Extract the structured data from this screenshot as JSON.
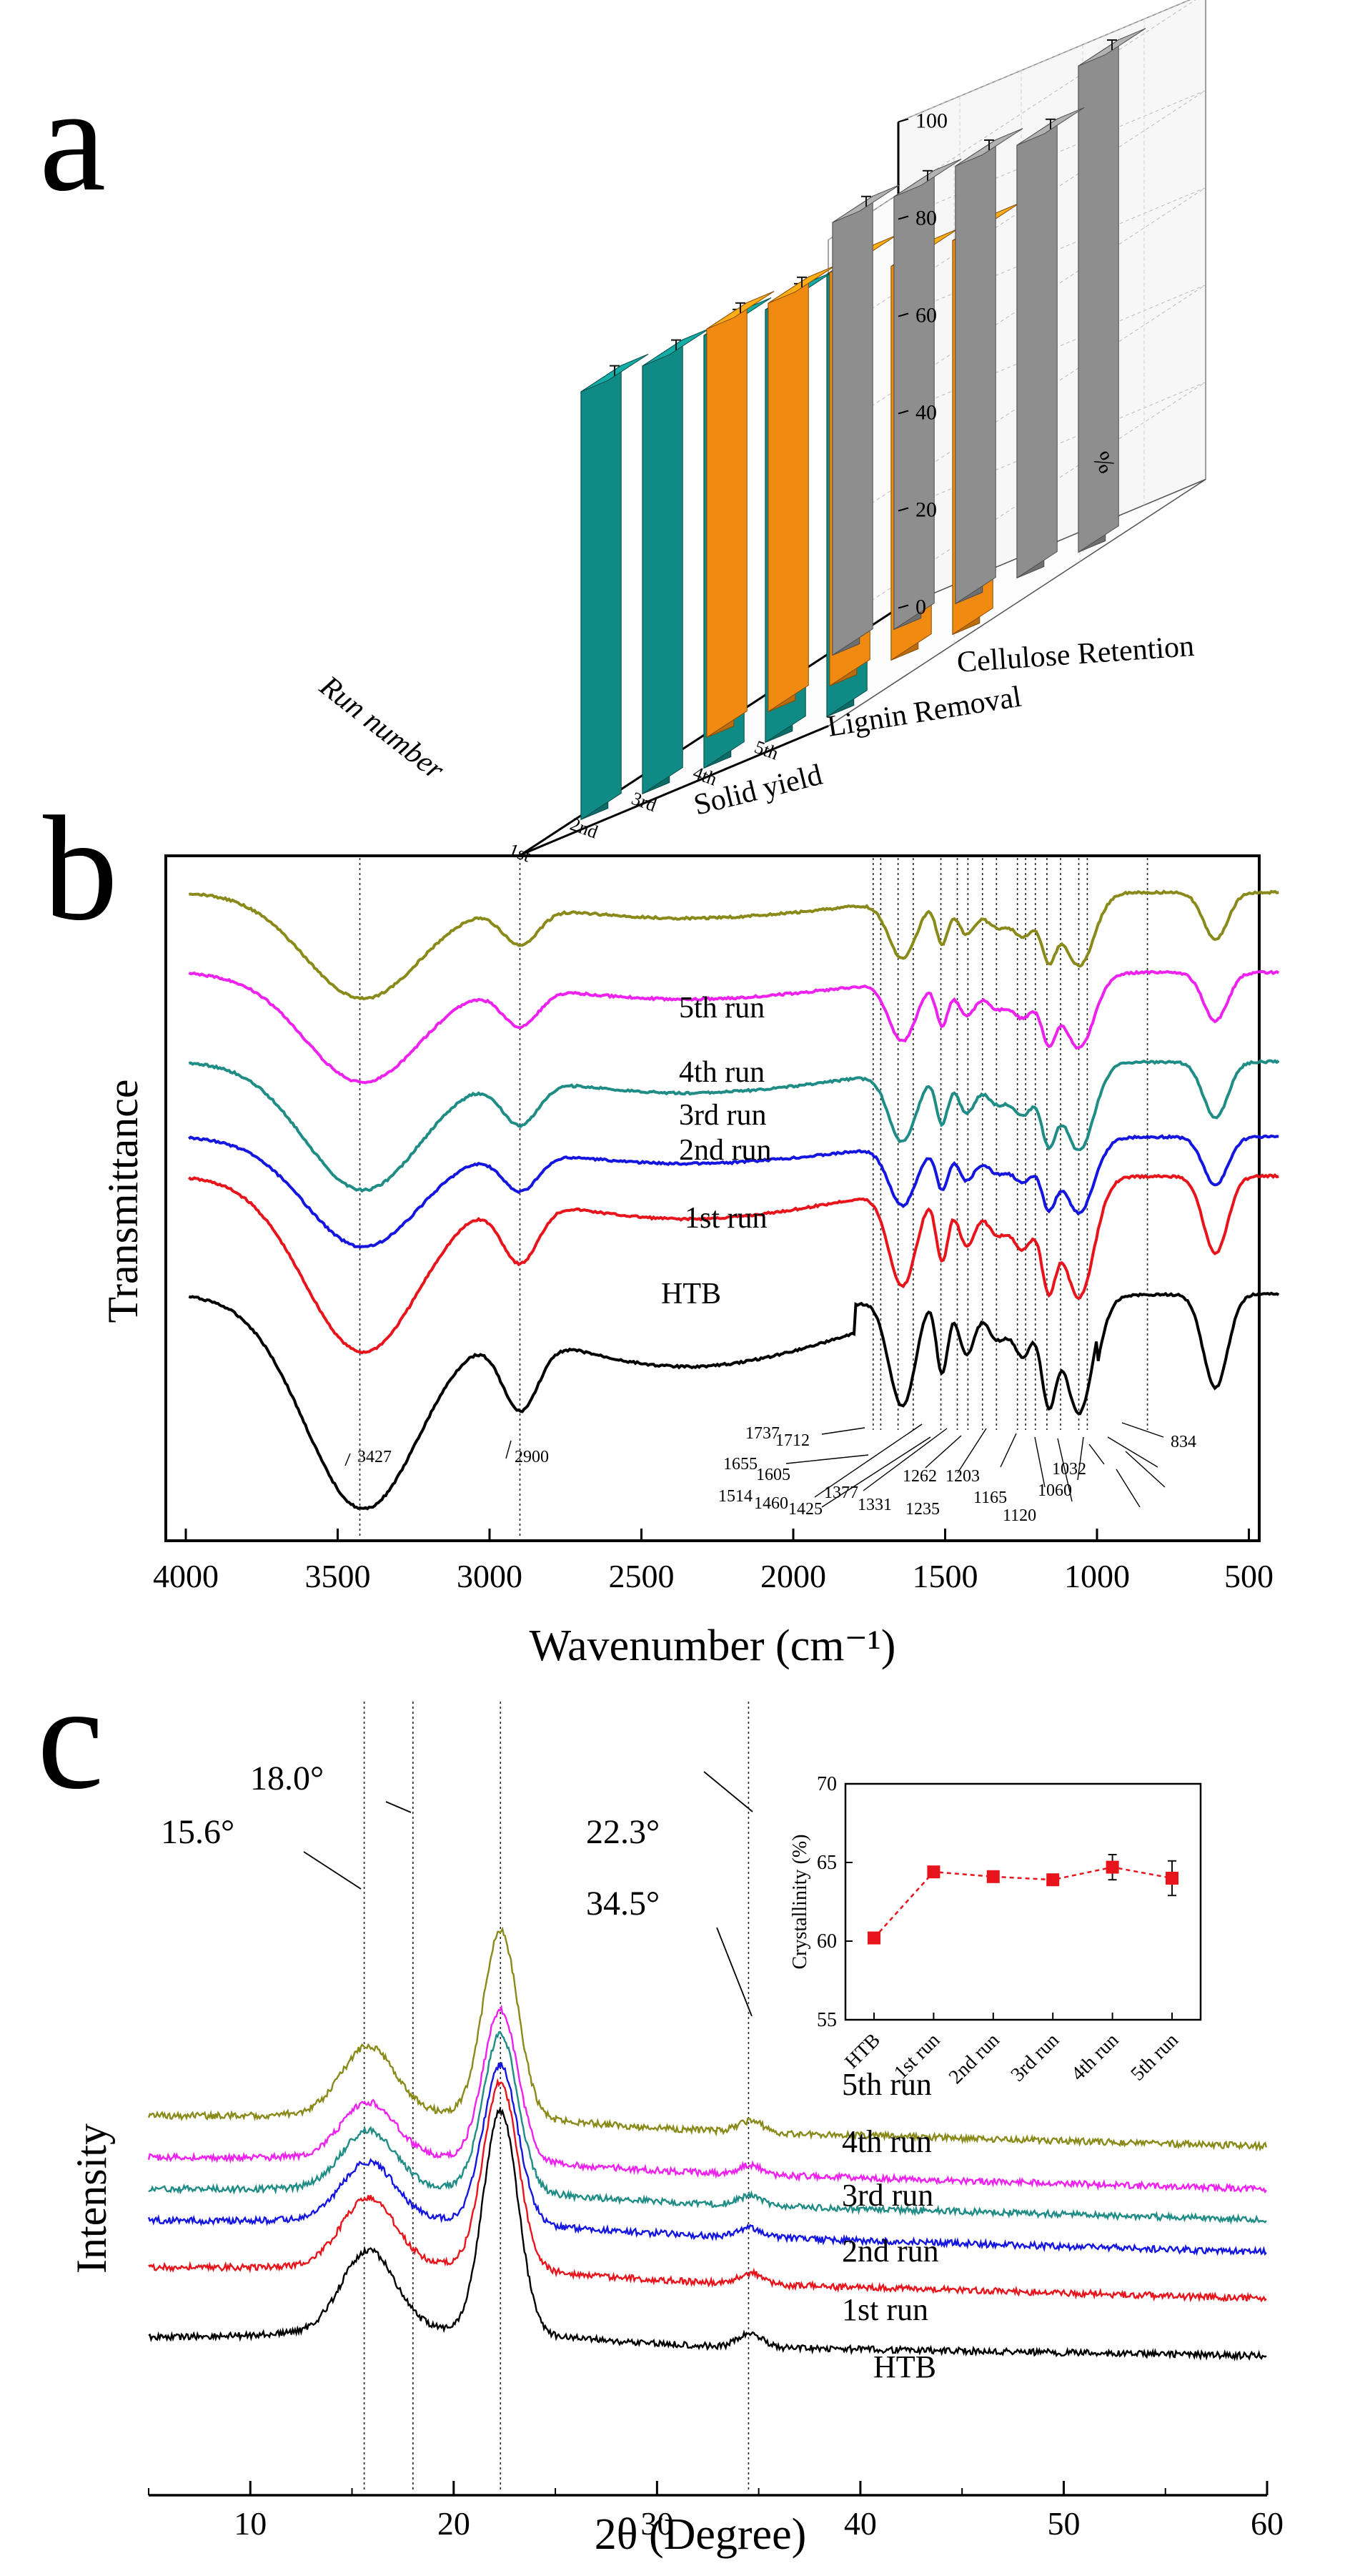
{
  "panels": {
    "a": "a",
    "b": "b",
    "c": "c"
  },
  "colors": {
    "solid": "#0f8a84",
    "lignin": "#f08a10",
    "cellulose": "#8e8e8e",
    "htb": "#000000",
    "run1": "#e8141c",
    "run2": "#1515e0",
    "run3": "#1f8c85",
    "run4": "#ee22ee",
    "run5": "#8a8a1a"
  },
  "chart_data": [
    {
      "type": "bar3d",
      "panel": "a",
      "title": "",
      "runs": [
        "1st",
        "2nd",
        "3rd",
        "4th",
        "5th"
      ],
      "axis_run_label": "Run number",
      "axis_value_label": "%",
      "zlim": [
        0,
        100
      ],
      "zticks": [
        "0",
        "20",
        "40",
        "60",
        "80",
        "100"
      ],
      "series": [
        {
          "name": "Solid yield",
          "color": "#0f8a84",
          "values": [
            88,
            88,
            89,
            89,
            91
          ]
        },
        {
          "name": "Lignin Removal",
          "color": "#f08a10",
          "values": [
            84,
            84,
            85,
            81,
            81
          ]
        },
        {
          "name": "Cellulose Retention",
          "color": "#8e8e8e",
          "values": [
            89,
            89,
            90,
            89,
            100
          ]
        }
      ]
    },
    {
      "type": "line",
      "panel": "b",
      "xlabel": "Wavenumber (cm⁻¹)",
      "ylabel": "Transmittance",
      "xlim": [
        4000,
        400
      ],
      "xticks": [
        "4000",
        "3500",
        "3000",
        "2500",
        "2000",
        "1500",
        "1000",
        "500"
      ],
      "series": [
        {
          "name": "HTB",
          "color": "#000000"
        },
        {
          "name": "1st run",
          "color": "#e8141c"
        },
        {
          "name": "2nd run",
          "color": "#1515e0"
        },
        {
          "name": "3rd run",
          "color": "#1f8c85"
        },
        {
          "name": "4th run",
          "color": "#ee22ee"
        },
        {
          "name": "5th run",
          "color": "#8a8a1a"
        }
      ],
      "peaks": [
        "3427",
        "2900",
        "1737",
        "1712",
        "1655",
        "1605",
        "1514",
        "1460",
        "1425",
        "1377",
        "1331",
        "1262",
        "1235",
        "1203",
        "1165",
        "1120",
        "1060",
        "1032",
        "834"
      ]
    },
    {
      "type": "line",
      "panel": "c",
      "xlabel": "2θ (Degree)",
      "ylabel": "Intensity",
      "xlim": [
        5,
        60
      ],
      "xticks": [
        "10",
        "20",
        "30",
        "40",
        "50",
        "60"
      ],
      "series": [
        {
          "name": "HTB",
          "color": "#000000"
        },
        {
          "name": "1st run",
          "color": "#e8141c"
        },
        {
          "name": "2nd run",
          "color": "#1515e0"
        },
        {
          "name": "3rd run",
          "color": "#1f8c85"
        },
        {
          "name": "4th run",
          "color": "#ee22ee"
        },
        {
          "name": "5th run",
          "color": "#8a8a1a"
        }
      ],
      "peaks": [
        "15.6°",
        "18.0°",
        "22.3°",
        "34.5°"
      ]
    },
    {
      "type": "scatter",
      "panel": "c-inset",
      "ylabel": "Crystallinity (%)",
      "categories": [
        "HTB",
        "1st run",
        "2nd run",
        "3rd run",
        "4th run",
        "5th run"
      ],
      "values": [
        60.2,
        64.4,
        64.1,
        63.9,
        64.7,
        64.0
      ],
      "errors": [
        0.2,
        0.3,
        0.3,
        0.3,
        0.8,
        1.1
      ],
      "ylim": [
        55,
        70
      ],
      "yticks": [
        "55",
        "60",
        "65",
        "70"
      ],
      "color": "#e8141c"
    }
  ]
}
